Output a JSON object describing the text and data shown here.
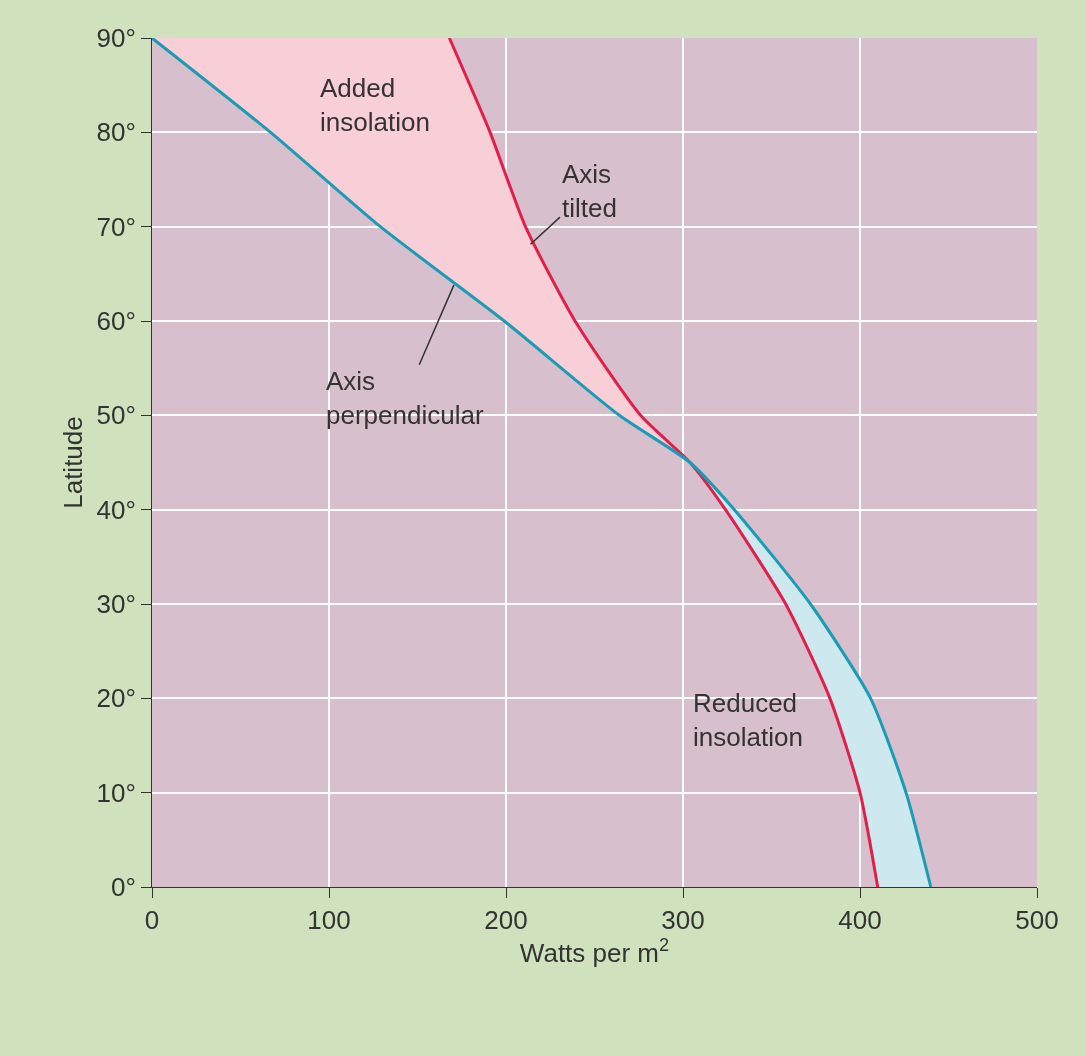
{
  "chart_data": {
    "type": "line",
    "xlabel": "Watts per m$^{2}$",
    "ylabel": "Latitude",
    "xlim": [
      0,
      500
    ],
    "xticks": [
      0,
      100,
      200,
      300,
      400,
      500
    ],
    "ylim": [
      0,
      90
    ],
    "yticks": [
      {
        "value": 0,
        "label": "0°"
      },
      {
        "value": 10,
        "label": "10°"
      },
      {
        "value": 20,
        "label": "20°"
      },
      {
        "value": 30,
        "label": "30°"
      },
      {
        "value": 40,
        "label": "40°"
      },
      {
        "value": 50,
        "label": "50°"
      },
      {
        "value": 60,
        "label": "60°"
      },
      {
        "value": 70,
        "label": "70°"
      },
      {
        "value": 80,
        "label": "80°"
      },
      {
        "value": 90,
        "label": "90°"
      }
    ],
    "grid": true,
    "marker": "none",
    "line_style": "solid",
    "series": [
      {
        "color": "#e0204a",
        "x": [
          168,
          191,
          211,
          239,
          276,
          304,
          324,
          358,
          383,
          400,
          410
        ],
        "values": [
          90,
          80,
          70,
          60,
          50,
          45,
          40,
          30,
          20,
          10,
          0
        ]
      },
      {
        "color": "#1a9cb5",
        "x": [
          0,
          67,
          129,
          199,
          264,
          304,
          329,
          372,
          406,
          426,
          440
        ],
        "values": [
          90,
          80,
          70,
          60,
          50,
          45,
          40,
          30,
          20,
          10,
          0
        ]
      }
    ],
    "annotations": [
      "Added\ninsolation",
      {
        "text": "Axis\ntilted",
        "x": 213,
        "y": 68
      },
      {
        "text": "Axis\nperpendicular",
        "x": 171,
        "y": 64
      },
      "Reduced\ninsolation"
    ]
  }
}
